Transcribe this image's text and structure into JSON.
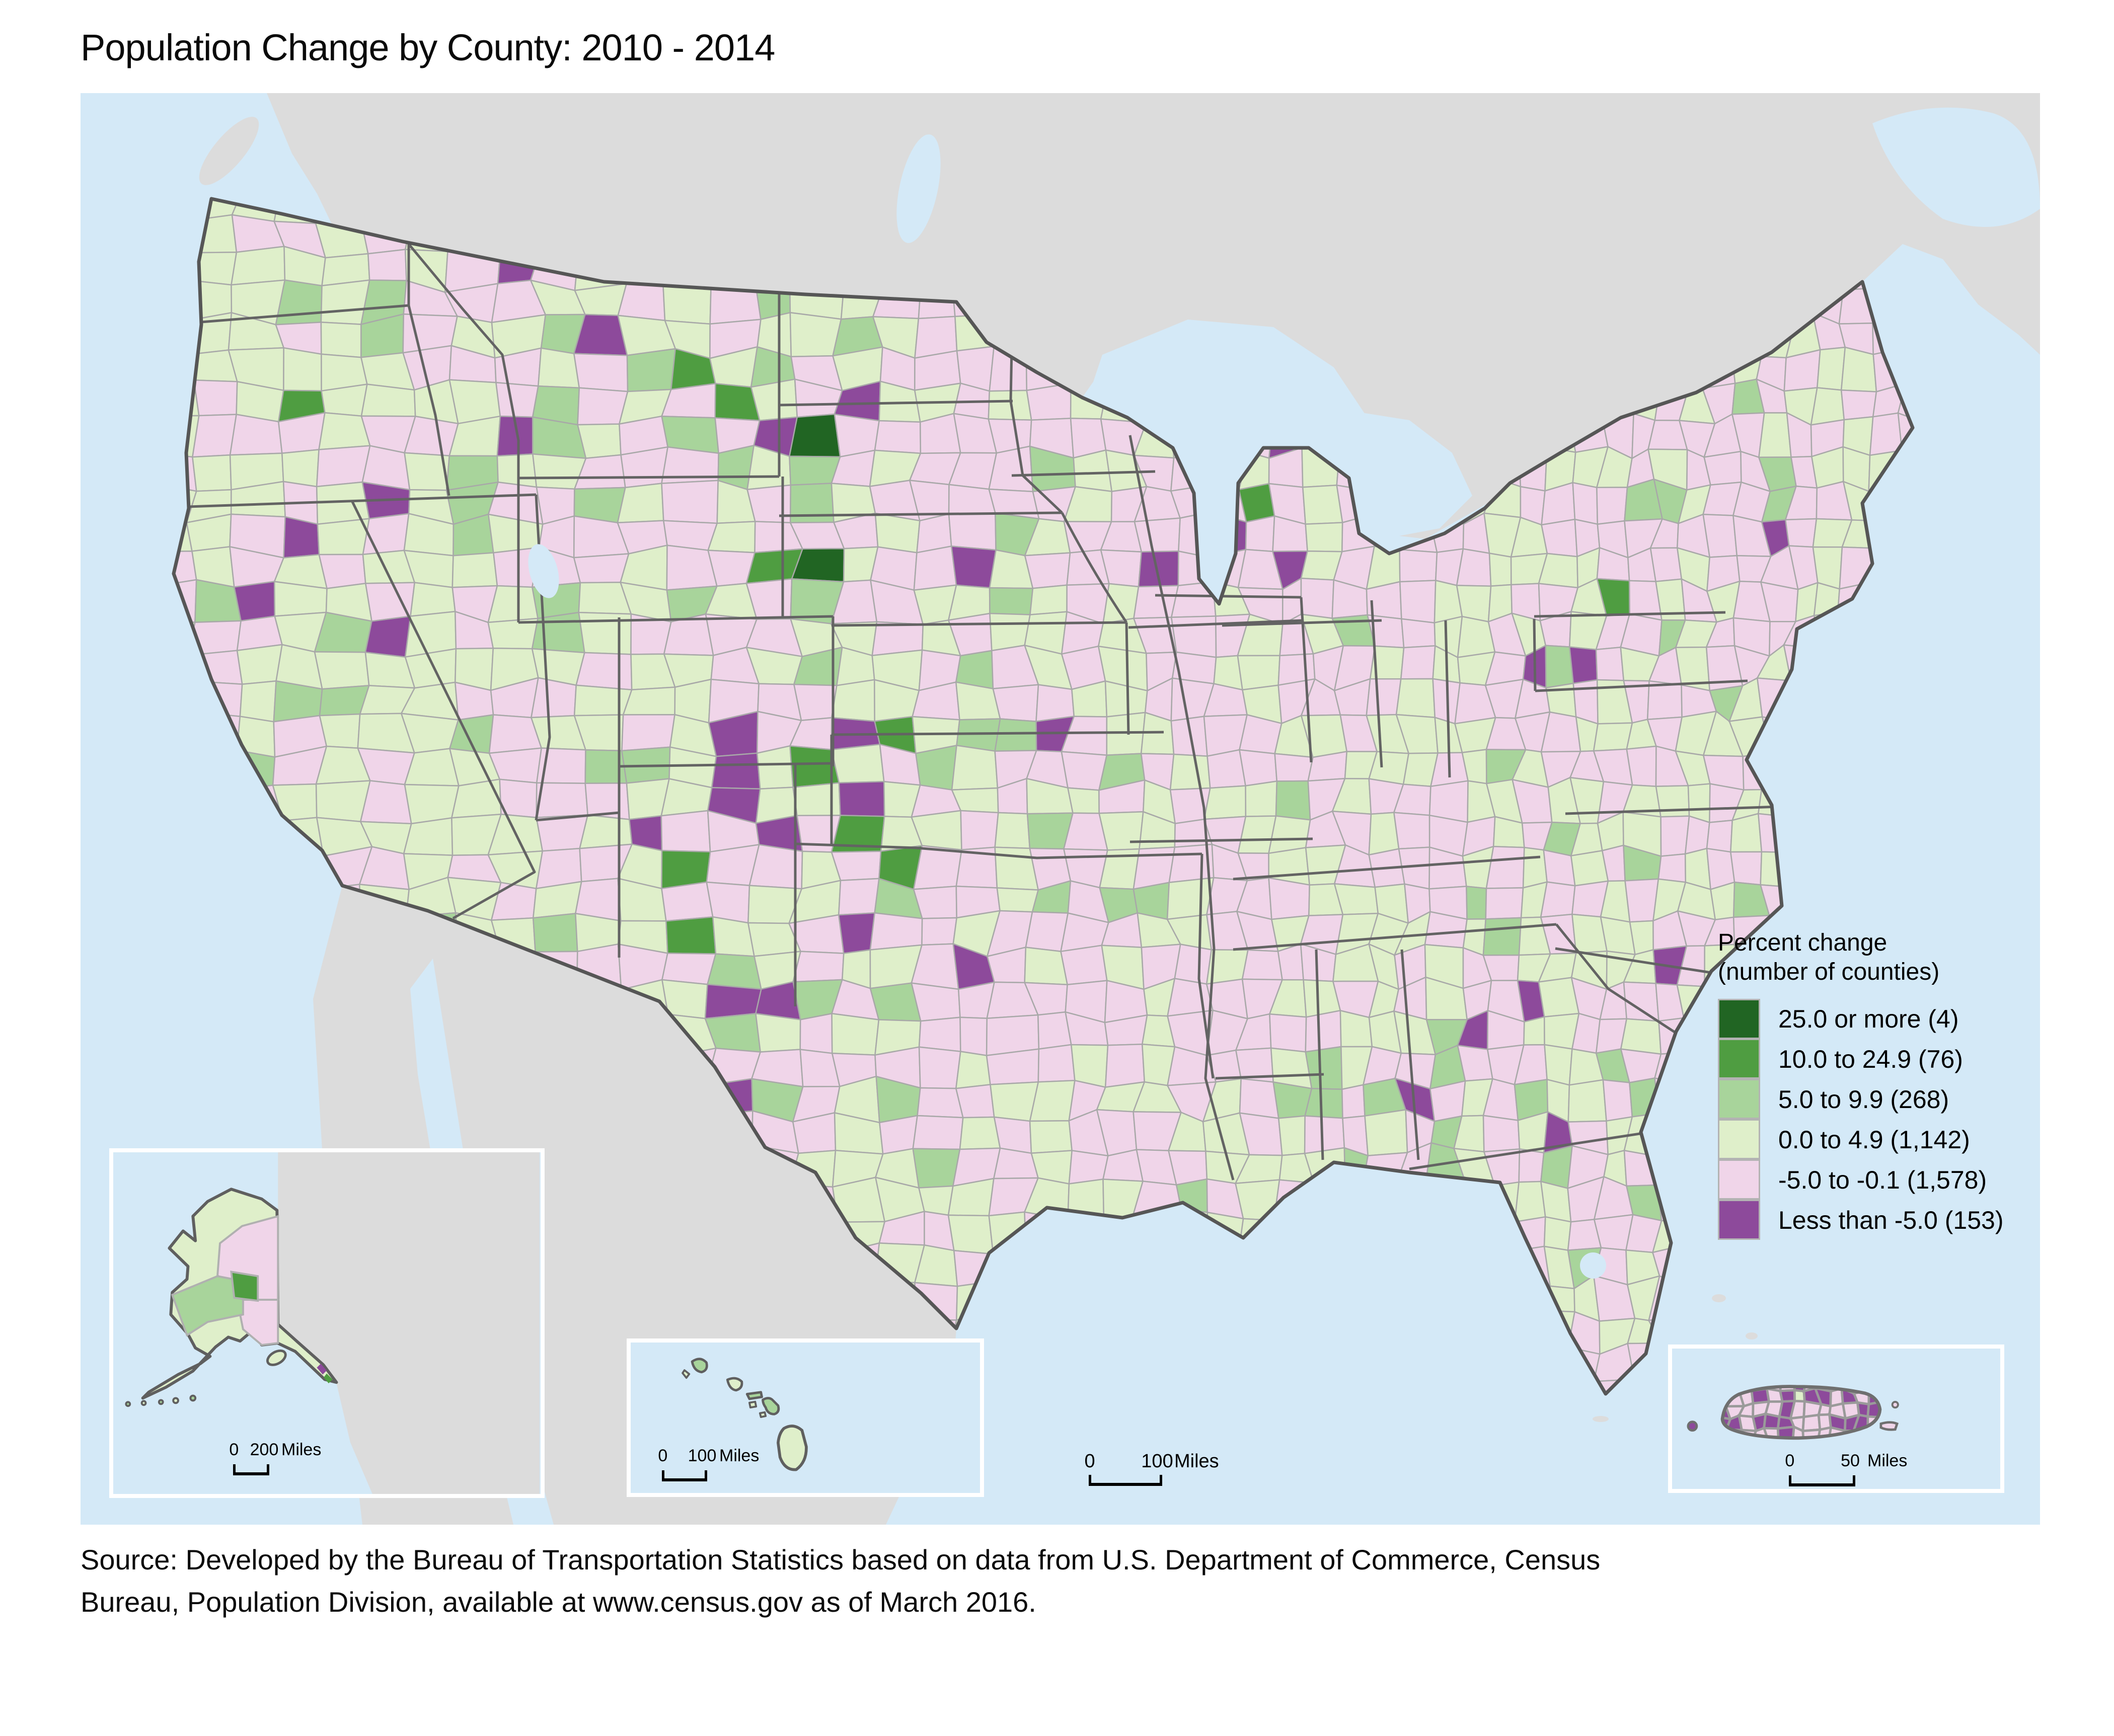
{
  "title": "Population Change by County: 2010 - 2014",
  "legend": {
    "title1": "Percent change",
    "title2": "(number of counties)",
    "items": [
      {
        "label": "25.0 or more (4)",
        "range": "25.0 or more",
        "count": 4,
        "color": "#216523"
      },
      {
        "label": "10.0 to 24.9 (76)",
        "range": "10.0 to 24.9",
        "count": 76,
        "color": "#4f9d41"
      },
      {
        "label": "5.0 to 9.9 (268)",
        "range": "5.0 to 9.9",
        "count": 268,
        "color": "#a8d49b"
      },
      {
        "label": "0.0 to 4.9 (1,142)",
        "range": "0.0 to 4.9",
        "count": 1142,
        "color": "#dfefca"
      },
      {
        "label": "-5.0 to -0.1 (1,578)",
        "range": "-5.0 to -0.1",
        "count": 1578,
        "color": "#f0d5e9"
      },
      {
        "label": "Less than -5.0 (153)",
        "range": "Less than -5.0",
        "count": 153,
        "color": "#8d4a9b"
      }
    ]
  },
  "map": {
    "colors": {
      "ocean": "#d4e9f7",
      "other_land": "#dcdcdc",
      "county_border": "#a8a8a8",
      "state_border": "#636363",
      "nation_border": "#565656",
      "inset_frame": "#ffffff"
    }
  },
  "scalebars": {
    "main": {
      "start": "0",
      "end": "100",
      "unit": "Miles"
    },
    "alaska": {
      "start": "0",
      "end": "200",
      "unit": "Miles"
    },
    "hawaii": {
      "start": "0",
      "end": "100",
      "unit": "Miles"
    },
    "puerto_rico": {
      "start": "0",
      "end": "50",
      "unit": "Miles"
    }
  },
  "source": {
    "line1": "Source: Developed by the Bureau of  Transportation Statistics based on data from U.S. Department of Commerce,  Census",
    "line2": "Bureau, Population Division, available at www.census.gov as of March 2016."
  },
  "chart_data": {
    "type": "choropleth_map",
    "title": "Population Change by County: 2010 - 2014",
    "legend_title": "Percent change (number of counties)",
    "metric": "Percent population change by county, 2010-2014",
    "categories": [
      "25.0 or more",
      "10.0 to 24.9",
      "5.0 to 9.9",
      "0.0 to 4.9",
      "-5.0 to -0.1",
      "Less than -5.0"
    ],
    "county_counts": [
      4,
      76,
      268,
      1142,
      1578,
      153
    ],
    "colors": [
      "#216523",
      "#4f9d41",
      "#a8d49b",
      "#dfefca",
      "#f0d5e9",
      "#8d4a9b"
    ],
    "regions_shown": [
      "Contiguous United States",
      "Alaska",
      "Hawaii",
      "Puerto Rico"
    ],
    "legend_position": "right",
    "notes": "Greens indicate population growth; pink and purple indicate decline."
  }
}
